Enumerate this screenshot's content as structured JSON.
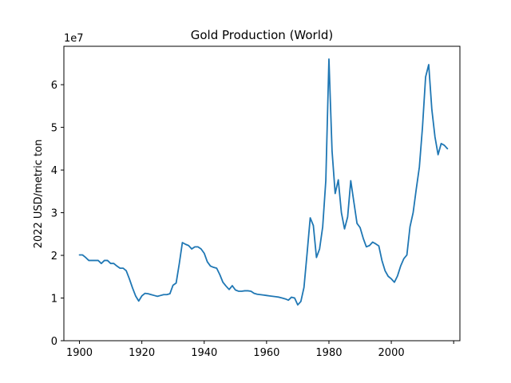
{
  "chart_data": {
    "type": "line",
    "title": "Gold Production (World)",
    "xlabel": "",
    "ylabel": "2022 USD/metric ton",
    "y_offset_label": "1e7",
    "y_scale": 10000000,
    "xlim": [
      1895,
      2022
    ],
    "ylim": [
      0,
      69000000
    ],
    "x_ticks": [
      1900,
      1920,
      1940,
      1960,
      1980,
      2000,
      2020
    ],
    "x_tick_labels": [
      "1900",
      "1920",
      "1940",
      "1960",
      "1980",
      "2000",
      ""
    ],
    "y_ticks": [
      0,
      10000000,
      20000000,
      30000000,
      40000000,
      50000000,
      60000000
    ],
    "y_tick_labels": [
      "0",
      "1",
      "2",
      "3",
      "4",
      "5",
      "6"
    ],
    "grid": false,
    "line_color": "#1f77b4",
    "series": [
      {
        "name": "Gold Production (World)",
        "x": [
          1900,
          1901,
          1902,
          1903,
          1904,
          1905,
          1906,
          1907,
          1908,
          1909,
          1910,
          1911,
          1912,
          1913,
          1914,
          1915,
          1916,
          1917,
          1918,
          1919,
          1920,
          1921,
          1922,
          1923,
          1924,
          1925,
          1926,
          1927,
          1928,
          1929,
          1930,
          1931,
          1932,
          1933,
          1934,
          1935,
          1936,
          1937,
          1938,
          1939,
          1940,
          1941,
          1942,
          1943,
          1944,
          1945,
          1946,
          1947,
          1948,
          1949,
          1950,
          1951,
          1952,
          1953,
          1954,
          1955,
          1956,
          1957,
          1958,
          1959,
          1960,
          1961,
          1962,
          1963,
          1964,
          1965,
          1966,
          1967,
          1968,
          1969,
          1970,
          1971,
          1972,
          1973,
          1974,
          1975,
          1976,
          1977,
          1978,
          1979,
          1980,
          1981,
          1982,
          1983,
          1984,
          1985,
          1986,
          1987,
          1988,
          1989,
          1990,
          1991,
          1992,
          1993,
          1994,
          1995,
          1996,
          1997,
          1998,
          1999,
          2000,
          2001,
          2002,
          2003,
          2004,
          2005,
          2006,
          2007,
          2008,
          2009,
          2010,
          2011,
          2012,
          2013,
          2014,
          2015,
          2016,
          2017,
          2018
        ],
        "values": [
          20100000,
          20100000,
          19500000,
          18800000,
          18800000,
          18800000,
          18800000,
          18100000,
          18800000,
          18800000,
          18100000,
          18100000,
          17500000,
          17000000,
          17000000,
          16400000,
          14500000,
          12400000,
          10500000,
          9300000,
          10500000,
          11100000,
          11000000,
          10800000,
          10600000,
          10400000,
          10600000,
          10800000,
          10800000,
          11000000,
          13000000,
          13500000,
          18000000,
          23000000,
          22600000,
          22300000,
          21500000,
          22000000,
          22000000,
          21500000,
          20500000,
          18500000,
          17500000,
          17200000,
          17000000,
          15500000,
          13700000,
          12800000,
          12000000,
          12900000,
          11900000,
          11600000,
          11600000,
          11700000,
          11700000,
          11600000,
          11100000,
          10900000,
          10800000,
          10700000,
          10600000,
          10500000,
          10400000,
          10300000,
          10200000,
          10000000,
          9800000,
          9500000,
          10200000,
          10000000,
          8400000,
          9200000,
          12500000,
          20500000,
          28800000,
          27000000,
          19500000,
          21500000,
          26700000,
          37500000,
          66000000,
          44500000,
          34500000,
          37700000,
          30000000,
          26200000,
          29000000,
          37500000,
          32500000,
          27500000,
          26500000,
          24000000,
          22000000,
          22300000,
          23100000,
          22700000,
          22200000,
          18800000,
          16400000,
          15100000,
          14500000,
          13700000,
          15200000,
          17500000,
          19200000,
          20100000,
          26700000,
          30000000,
          35500000,
          40700000,
          50000000,
          61800000,
          64700000,
          54200000,
          47800000,
          43600000,
          46200000,
          45800000,
          45000000
        ]
      }
    ]
  }
}
